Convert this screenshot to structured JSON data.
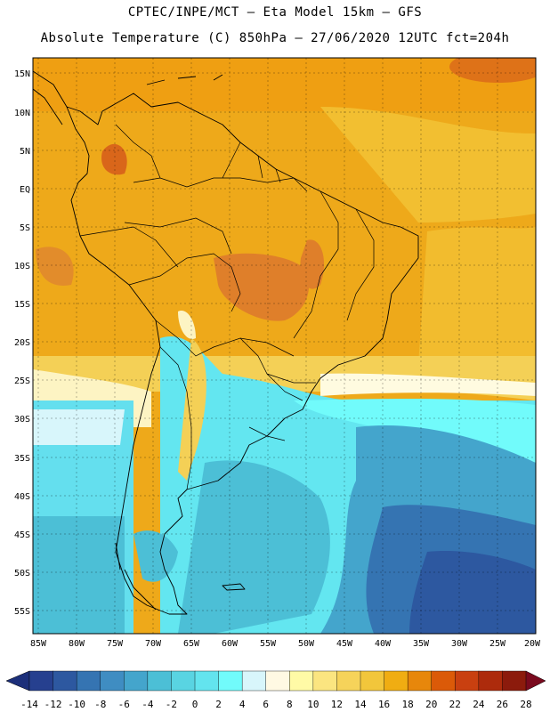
{
  "title_line1": "CPTEC/INPE/MCT –  Eta Model 15km – GFS",
  "title_line2": "Absolute Temperature (C) 850hPa – 27/06/2020 12UTC fct=204h",
  "lat_labels": [
    "15N",
    "10N",
    "5N",
    "EQ",
    "5S",
    "10S",
    "15S",
    "20S",
    "25S",
    "30S",
    "35S",
    "40S",
    "45S",
    "50S",
    "55S"
  ],
  "lon_labels": [
    "85W",
    "80W",
    "75W",
    "70W",
    "65W",
    "60W",
    "55W",
    "50W",
    "45W",
    "40W",
    "35W",
    "30W",
    "25W",
    "20W"
  ],
  "colorbar": {
    "labels": [
      "-14",
      "-12",
      "-10",
      "-8",
      "-6",
      "-4",
      "-2",
      "0",
      "2",
      "4",
      "6",
      "8",
      "10",
      "12",
      "14",
      "16",
      "18",
      "20",
      "22",
      "24",
      "26",
      "28"
    ],
    "colors": [
      "#26408f",
      "#2d58a0",
      "#3574b2",
      "#3f8dc2",
      "#44a5cc",
      "#4cbfd6",
      "#59d4e2",
      "#63e4ee",
      "#71fbfb",
      "#d8f6fb",
      "#fff9e3",
      "#fffaa6",
      "#fbe580",
      "#f6d35a",
      "#f2c63b",
      "#f0ad12",
      "#e7870b",
      "#db5a08",
      "#c94010",
      "#ad2b0c",
      "#8c1b0c"
    ],
    "left_arrow_color": "#1c2f7a",
    "right_arrow_color": "#7a0a1e"
  },
  "colors": {
    "warm": "#eba41a",
    "hot": "#df7f2a",
    "cyan": "#63e8f0",
    "ocean_blue": "#3c88c0",
    "deep_blue": "#2d5fa5"
  }
}
